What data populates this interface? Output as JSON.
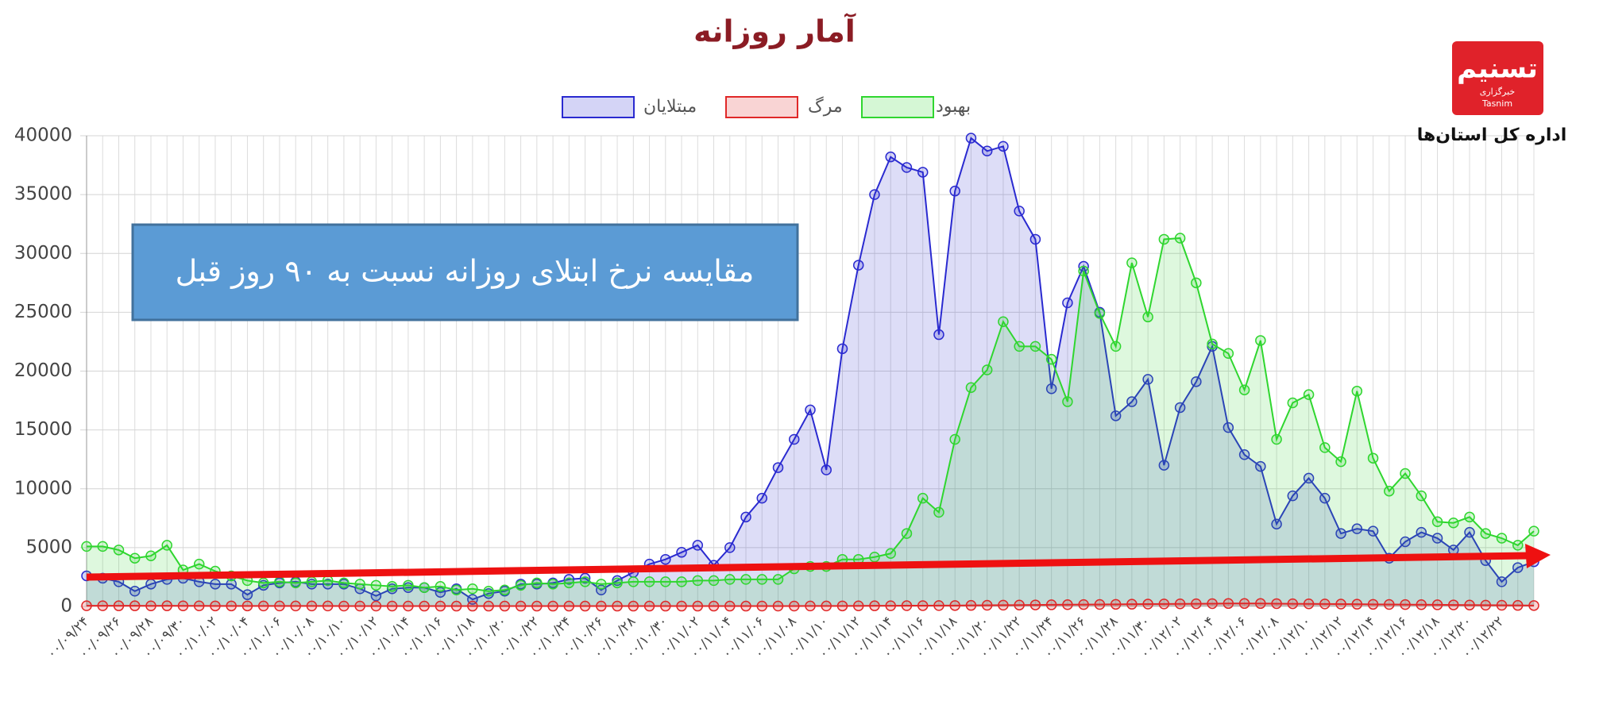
{
  "chart_data": {
    "type": "line",
    "title": "آمار روزانه",
    "annotation": "مقایسه نرخ ابتلای روزانه نسبت به ۹۰ روز قبل",
    "categories": [
      "۰۰/۰۹/۲۴",
      null,
      "۰۰/۰۹/۲۶",
      null,
      "۰۰/۰۹/۲۸",
      null,
      "۰۰/۰۹/۳۰",
      null,
      "۰۰/۱۰/۰۲",
      null,
      "۰۰/۱۰/۰۴",
      null,
      "۰۰/۱۰/۰۶",
      null,
      "۰۰/۱۰/۰۸",
      null,
      "۰۰/۱۰/۱۰",
      null,
      "۰۰/۱۰/۱۲",
      null,
      "۰۰/۱۰/۱۴",
      null,
      "۰۰/۱۰/۱۶",
      null,
      "۰۰/۱۰/۱۸",
      null,
      "۰۰/۱۰/۲۰",
      null,
      "۰۰/۱۰/۲۲",
      null,
      "۰۰/۱۰/۲۴",
      null,
      "۰۰/۱۰/۲۶",
      null,
      "۰۰/۱۰/۲۸",
      null,
      "۰۰/۱۰/۳۰",
      null,
      "۰۰/۱۱/۰۲",
      null,
      "۰۰/۱۱/۰۴",
      null,
      "۰۰/۱۱/۰۶",
      null,
      "۰۰/۱۱/۰۸",
      null,
      "۰۰/۱۱/۱۰",
      null,
      "۰۰/۱۱/۱۲",
      null,
      "۰۰/۱۱/۱۴",
      null,
      "۰۰/۱۱/۱۶",
      null,
      "۰۰/۱۱/۱۸",
      null,
      "۰۰/۱۱/۲۰",
      null,
      "۰۰/۱۱/۲۲",
      null,
      "۰۰/۱۱/۲۴",
      null,
      "۰۰/۱۱/۲۶",
      null,
      "۰۰/۱۱/۲۸",
      null,
      "۰۰/۱۱/۳۰",
      null,
      "۰۰/۱۲/۰۲",
      null,
      "۰۰/۱۲/۰۴",
      null,
      "۰۰/۱۲/۰۶",
      null,
      "۰۰/۱۲/۰۸",
      null,
      "۰۰/۱۲/۱۰",
      null,
      "۰۰/۱۲/۱۲",
      null,
      "۰۰/۱۲/۱۴",
      null,
      "۰۰/۱۲/۱۶",
      null,
      "۰۰/۱۲/۱۸",
      null,
      "۰۰/۱۲/۲۰",
      null,
      "۰۰/۱۲/۲۲",
      null,
      null
    ],
    "series": [
      {
        "name": "مبتلایان",
        "color": "#2a2ad0",
        "values": [
          2600,
          2400,
          2100,
          1300,
          1900,
          2300,
          2400,
          2100,
          1900,
          1900,
          1000,
          1800,
          2000,
          2100,
          1900,
          1900,
          1900,
          1500,
          900,
          1500,
          1600,
          1600,
          1200,
          1500,
          600,
          1100,
          1300,
          1900,
          1900,
          2000,
          2300,
          2400,
          1400,
          2200,
          2900,
          3600,
          4000,
          4600,
          5200,
          3500,
          5000,
          7600,
          9200,
          11800,
          14200,
          16700,
          11600,
          21900,
          29000,
          35000,
          38200,
          37300,
          36900,
          23100,
          35300,
          39800,
          38700,
          39100,
          33600,
          31200,
          18500,
          25800,
          28900,
          25000,
          16200,
          17400,
          19300,
          12000,
          16900,
          19100,
          22100,
          15200,
          12900,
          11900,
          7000,
          9400,
          10900,
          9200,
          6200,
          6600,
          6400,
          4100,
          5500,
          6300,
          5800,
          4800,
          6300,
          3900,
          2100,
          3300,
          3800
        ]
      },
      {
        "name": "مرگ",
        "color": "#e02828",
        "values": [
          60,
          60,
          55,
          55,
          50,
          55,
          50,
          50,
          45,
          45,
          45,
          40,
          40,
          40,
          40,
          40,
          35,
          35,
          35,
          35,
          35,
          30,
          30,
          30,
          30,
          30,
          30,
          30,
          30,
          30,
          30,
          30,
          30,
          30,
          30,
          30,
          30,
          30,
          30,
          30,
          30,
          30,
          35,
          35,
          35,
          40,
          40,
          45,
          50,
          55,
          60,
          65,
          70,
          75,
          80,
          90,
          100,
          110,
          120,
          130,
          140,
          150,
          160,
          170,
          180,
          190,
          200,
          210,
          220,
          230,
          240,
          250,
          250,
          250,
          240,
          230,
          220,
          210,
          200,
          190,
          180,
          170,
          160,
          150,
          140,
          130,
          120,
          110,
          100,
          90,
          80
        ]
      },
      {
        "name": "بهبود",
        "color": "#2fd62f",
        "values": [
          5100,
          5100,
          4800,
          4100,
          4300,
          5200,
          3100,
          3600,
          3000,
          2600,
          2200,
          2000,
          2100,
          2000,
          2100,
          2200,
          2000,
          1900,
          1800,
          1700,
          1800,
          1600,
          1700,
          1400,
          1500,
          1300,
          1400,
          1800,
          2000,
          1900,
          2000,
          2100,
          1900,
          2000,
          2100,
          2100,
          2100,
          2100,
          2200,
          2200,
          2300,
          2300,
          2300,
          2300,
          3200,
          3400,
          3400,
          4000,
          4000,
          4200,
          4500,
          6200,
          9200,
          8000,
          14200,
          18600,
          20100,
          24200,
          22100,
          22100,
          21000,
          17400,
          28500,
          24900,
          22100,
          29200,
          24600,
          31200,
          31300,
          27500,
          22300,
          21500,
          18400,
          22600,
          14200,
          17300,
          18000,
          13500,
          12300,
          18300,
          12600,
          9800,
          11300,
          9400,
          7200,
          7100,
          7600,
          6200,
          5800,
          5200,
          6400
        ]
      }
    ],
    "ylim": [
      0,
      40000
    ],
    "yticks": [
      0,
      5000,
      10000,
      15000,
      20000,
      25000,
      30000,
      35000,
      40000
    ],
    "grid": true,
    "legend": "top"
  },
  "logo": {
    "mark": "تسنیم",
    "agency": "خبرگزاری",
    "latin": "Tasnim",
    "caption": "اداره کل استان‌ها"
  }
}
